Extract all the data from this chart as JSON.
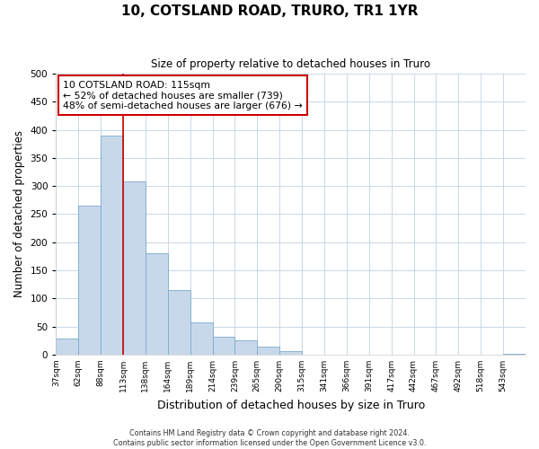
{
  "title": "10, COTSLAND ROAD, TRURO, TR1 1YR",
  "subtitle": "Size of property relative to detached houses in Truro",
  "xlabel": "Distribution of detached houses by size in Truro",
  "ylabel": "Number of detached properties",
  "bar_labels": [
    "37sqm",
    "62sqm",
    "88sqm",
    "113sqm",
    "138sqm",
    "164sqm",
    "189sqm",
    "214sqm",
    "239sqm",
    "265sqm",
    "290sqm",
    "315sqm",
    "341sqm",
    "366sqm",
    "391sqm",
    "417sqm",
    "442sqm",
    "467sqm",
    "492sqm",
    "518sqm",
    "543sqm"
  ],
  "bar_values": [
    29,
    265,
    390,
    309,
    180,
    115,
    58,
    32,
    25,
    14,
    6,
    0,
    0,
    0,
    0,
    0,
    0,
    0,
    0,
    0,
    2
  ],
  "bar_color": "#c8d8eb",
  "bar_edgecolor": "#7aaacc",
  "marker_line_color": "#cc0000",
  "annotation_line1": "10 COTSLAND ROAD: 115sqm",
  "annotation_line2": "← 52% of detached houses are smaller (739)",
  "annotation_line3": "48% of semi-detached houses are larger (676) →",
  "annotation_box_color": "#ffffff",
  "annotation_box_edgecolor": "#cc0000",
  "ylim": [
    0,
    500
  ],
  "yticks": [
    0,
    50,
    100,
    150,
    200,
    250,
    300,
    350,
    400,
    450,
    500
  ],
  "footer_line1": "Contains HM Land Registry data © Crown copyright and database right 2024.",
  "footer_line2": "Contains public sector information licensed under the Open Government Licence v3.0.",
  "background_color": "#ffffff",
  "grid_color": "#c8d8e8"
}
